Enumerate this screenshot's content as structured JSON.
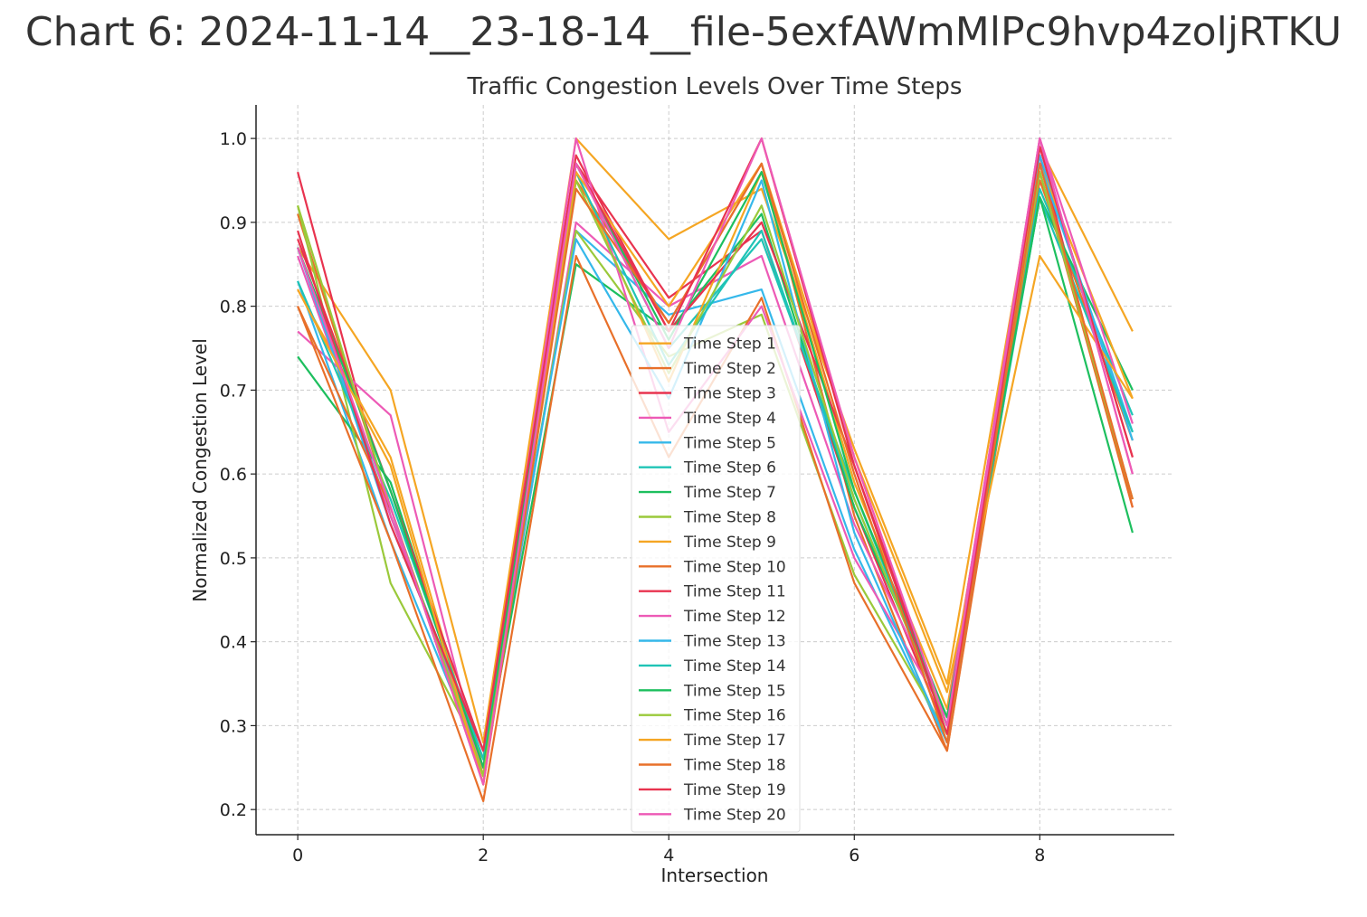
{
  "page_title": "Chart 6: 2024-11-14__23-18-14__file-5exfAWmMlPc9hvp4zoljRTKU",
  "chart_data": {
    "type": "line",
    "title": "Traffic Congestion Levels Over Time Steps",
    "xlabel": "Intersection",
    "ylabel": "Normalized Congestion Level",
    "x": [
      0,
      1,
      2,
      3,
      4,
      5,
      6,
      7,
      8,
      9
    ],
    "xlim": [
      -0.45,
      9.45
    ],
    "ylim": [
      0.17,
      1.04
    ],
    "xticks": [
      0,
      2,
      4,
      6,
      8
    ],
    "yticks": [
      0.2,
      0.3,
      0.4,
      0.5,
      0.6,
      0.7,
      0.8,
      0.9,
      1.0
    ],
    "ytick_labels": [
      "0.2",
      "0.3",
      "0.4",
      "0.5",
      "0.6",
      "0.7",
      "0.8",
      "0.9",
      "1.0"
    ],
    "grid": true,
    "legend_position": "center",
    "series": [
      {
        "name": "Time Step 1",
        "color": "#f5a623",
        "values": [
          0.87,
          0.7,
          0.28,
          1.0,
          0.88,
          0.94,
          0.63,
          0.35,
          0.99,
          0.77
        ]
      },
      {
        "name": "Time Step 2",
        "color": "#e8702a",
        "values": [
          0.91,
          0.56,
          0.24,
          0.95,
          0.78,
          0.97,
          0.55,
          0.27,
          0.95,
          0.64
        ]
      },
      {
        "name": "Time Step 3",
        "color": "#e8334f",
        "values": [
          0.96,
          0.55,
          0.26,
          0.97,
          0.81,
          0.89,
          0.56,
          0.29,
          0.98,
          0.56
        ]
      },
      {
        "name": "Time Step 4",
        "color": "#ed5ab6",
        "values": [
          0.77,
          0.67,
          0.24,
          0.9,
          0.8,
          0.86,
          0.54,
          0.31,
          1.0,
          0.6
        ]
      },
      {
        "name": "Time Step 5",
        "color": "#35b8ea",
        "values": [
          0.83,
          0.52,
          0.25,
          0.89,
          0.79,
          0.82,
          0.51,
          0.28,
          0.98,
          0.64
        ]
      },
      {
        "name": "Time Step 6",
        "color": "#1fc4b6",
        "values": [
          0.87,
          0.55,
          0.26,
          0.97,
          0.75,
          0.88,
          0.58,
          0.3,
          0.94,
          0.67
        ]
      },
      {
        "name": "Time Step 7",
        "color": "#1dbf5e",
        "values": [
          0.74,
          0.59,
          0.25,
          0.85,
          0.77,
          0.91,
          0.56,
          0.31,
          0.93,
          0.7
        ]
      },
      {
        "name": "Time Step 8",
        "color": "#9ac93a",
        "values": [
          0.92,
          0.47,
          0.26,
          0.89,
          0.74,
          0.79,
          0.48,
          0.29,
          0.96,
          0.57
        ]
      },
      {
        "name": "Time Step 9",
        "color": "#f5a623",
        "values": [
          0.82,
          0.62,
          0.24,
          0.96,
          0.71,
          0.96,
          0.59,
          0.32,
          0.97,
          0.69
        ]
      },
      {
        "name": "Time Step 10",
        "color": "#e8702a",
        "values": [
          0.8,
          0.52,
          0.21,
          0.86,
          0.62,
          0.81,
          0.47,
          0.27,
          0.96,
          0.56
        ]
      },
      {
        "name": "Time Step 11",
        "color": "#e8334f",
        "values": [
          0.88,
          0.58,
          0.27,
          0.98,
          0.77,
          0.9,
          0.61,
          0.3,
          0.99,
          0.62
        ]
      },
      {
        "name": "Time Step 12",
        "color": "#ed5ab6",
        "values": [
          0.86,
          0.55,
          0.25,
          1.0,
          0.65,
          0.8,
          0.5,
          0.31,
          1.0,
          0.66
        ]
      },
      {
        "name": "Time Step 13",
        "color": "#35b8ea",
        "values": [
          0.87,
          0.54,
          0.27,
          0.88,
          0.69,
          0.95,
          0.53,
          0.28,
          0.97,
          0.65
        ]
      },
      {
        "name": "Time Step 14",
        "color": "#1fc4b6",
        "values": [
          0.83,
          0.57,
          0.26,
          0.96,
          0.73,
          0.89,
          0.57,
          0.3,
          0.93,
          0.65
        ]
      },
      {
        "name": "Time Step 15",
        "color": "#1dbf5e",
        "values": [
          0.87,
          0.58,
          0.25,
          0.97,
          0.76,
          0.96,
          0.58,
          0.31,
          0.93,
          0.53
        ]
      },
      {
        "name": "Time Step 16",
        "color": "#9ac93a",
        "values": [
          0.92,
          0.56,
          0.24,
          0.95,
          0.72,
          0.92,
          0.57,
          0.3,
          0.96,
          0.57
        ]
      },
      {
        "name": "Time Step 17",
        "color": "#f5a623",
        "values": [
          0.82,
          0.61,
          0.23,
          0.96,
          0.8,
          0.97,
          0.62,
          0.34,
          0.86,
          0.69
        ]
      },
      {
        "name": "Time Step 18",
        "color": "#e8702a",
        "values": [
          0.8,
          0.56,
          0.23,
          0.94,
          0.78,
          0.97,
          0.6,
          0.28,
          0.97,
          0.57
        ]
      },
      {
        "name": "Time Step 19",
        "color": "#e8334f",
        "values": [
          0.89,
          0.54,
          0.27,
          0.97,
          0.77,
          1.0,
          0.61,
          0.29,
          0.99,
          0.62
        ]
      },
      {
        "name": "Time Step 20",
        "color": "#ed5ab6",
        "values": [
          0.87,
          0.56,
          0.23,
          0.97,
          0.75,
          1.0,
          0.62,
          0.3,
          1.0,
          0.6
        ]
      }
    ]
  }
}
